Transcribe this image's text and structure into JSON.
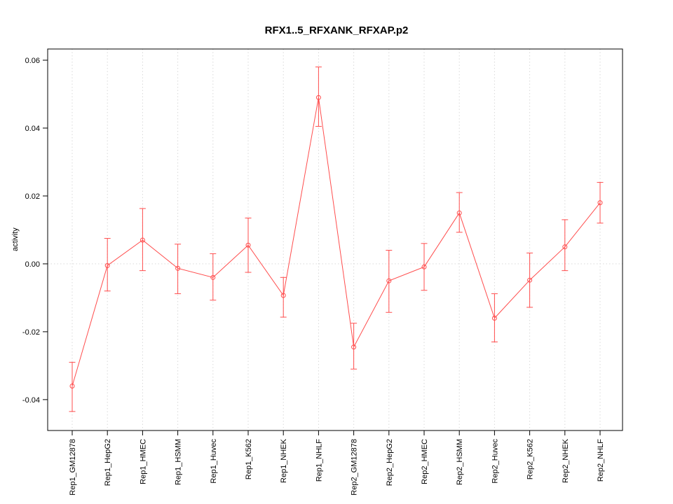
{
  "chart_data": {
    "type": "line",
    "title": "RFX1..5_RFXANK_RFXAP.p2",
    "xlabel": "",
    "ylabel": "activity",
    "ylim": [
      -0.0491,
      0.0633
    ],
    "yticks": [
      -0.04,
      -0.02,
      0.0,
      0.02,
      0.04,
      0.06
    ],
    "grid": {
      "vertical_dotted_at_categories": true,
      "horizontal_dotted_at_zero": true,
      "grid_color": "#d9d9d9"
    },
    "legend_position": "none",
    "marker": "open-circle",
    "line_color": "#ff4d4d",
    "categories": [
      "Rep1_GM12878",
      "Rep1_HepG2",
      "Rep1_HMEC",
      "Rep1_HSMM",
      "Rep1_Huvec",
      "Rep1_K562",
      "Rep1_NHEK",
      "Rep1_NHLF",
      "Rep2_GM12878",
      "Rep2_HepG2",
      "Rep2_HMEC",
      "Rep2_HSMM",
      "Rep2_Huvec",
      "Rep2_K562",
      "Rep2_NHEK",
      "Rep2_NHLF"
    ],
    "series": [
      {
        "name": "activity",
        "values": [
          -0.036,
          -0.0005,
          0.007,
          -0.0013,
          -0.004,
          0.0055,
          -0.0093,
          0.049,
          -0.0245,
          -0.005,
          -0.0009,
          0.015,
          -0.016,
          -0.0048,
          0.005,
          0.018
        ],
        "error_low": [
          -0.0435,
          -0.008,
          -0.002,
          -0.0088,
          -0.0107,
          -0.0025,
          -0.0157,
          0.0405,
          -0.031,
          -0.0143,
          -0.0078,
          0.0093,
          -0.023,
          -0.0128,
          -0.002,
          0.012
        ],
        "error_high": [
          -0.029,
          0.0075,
          0.0163,
          0.0058,
          0.003,
          0.0135,
          -0.004,
          0.058,
          -0.0175,
          0.004,
          0.006,
          0.021,
          -0.0088,
          0.0032,
          0.013,
          0.024
        ]
      }
    ]
  }
}
